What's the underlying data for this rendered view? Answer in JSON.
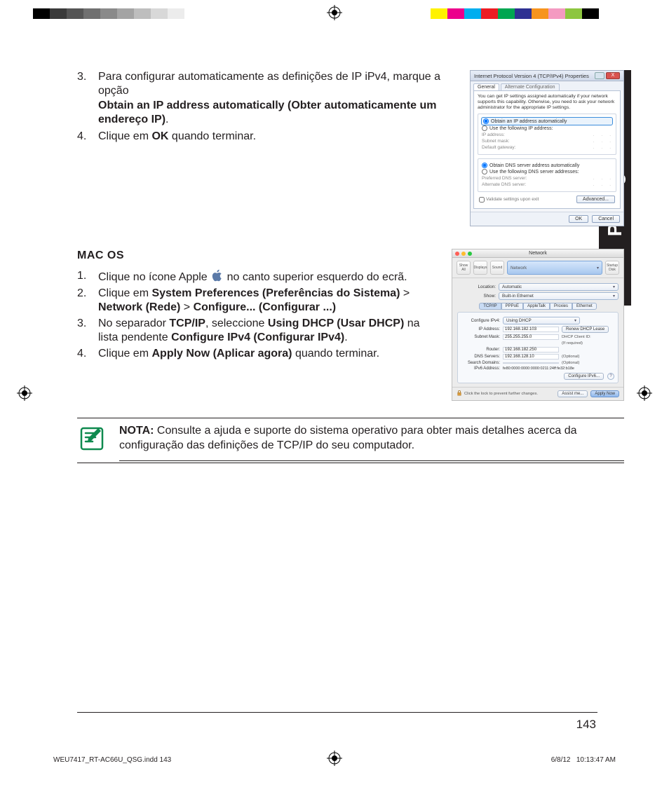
{
  "language_tab": "Português",
  "page_number": "143",
  "slug_left": "WEU7417_RT-AC66U_QSG.indd   143",
  "slug_date": "6/8/12",
  "slug_time": "10:13:47 AM",
  "colorbar_left": [
    "#000000",
    "#3a3a3a",
    "#555555",
    "#707070",
    "#8a8a8a",
    "#a4a4a4",
    "#bebebe",
    "#d8d8d8",
    "#ececec",
    "#ffffff",
    "#ffffff",
    "#ffffff",
    "#ffffff"
  ],
  "colorbar_right": [
    "#fff200",
    "#ec008c",
    "#00aeef",
    "#ed1c24",
    "#00a651",
    "#2e3192",
    "#f7941e",
    "#f49ac1",
    "#8dc63f",
    "#000000",
    "#ffffff",
    "#ffffff"
  ],
  "step3_num": "3.",
  "step3_a": "Para configurar automaticamente as definições de IP iPv4, marque a opção",
  "step3_b": "Obtain an IP address automatically (Obter automaticamente um endereço IP)",
  "step3_c": ".",
  "step4_num": "4.",
  "step4_a": "Clique em ",
  "step4_b": "OK",
  "step4_c": " quando terminar.",
  "macos_heading": "MAC OS",
  "m1_num": "1.",
  "m1_a": "Clique no ícone Apple ",
  "m1_b": " no canto superior esquerdo do ecrã.",
  "m2_num": "2.",
  "m2_a": "Clique em ",
  "m2_b": "System Preferences (Preferências do Sistema)",
  "m2_gt1": " > ",
  "m2_c": "Network (Rede)",
  "m2_gt2": " > ",
  "m2_d": "Configure... (Configurar ...)",
  "m3_num": "3.",
  "m3_a": "No separador ",
  "m3_b": "TCP/IP",
  "m3_c": ", seleccione ",
  "m3_d": "Using DHCP (Usar DHCP)",
  "m3_e": " na lista pendente ",
  "m3_f": "Configure IPv4 (Configurar IPv4)",
  "m3_g": ".",
  "m4_num": "4.",
  "m4_a": "Clique em ",
  "m4_b": "Apply Now (Aplicar agora)",
  "m4_c": " quando terminar.",
  "note_label": "NOTA:",
  "note_body": "   Consulte a ajuda e suporte do sistema operativo para obter mais detalhes acerca da configuração das definições de TCP/IP do seu computador.",
  "ipv4": {
    "title": "Internet Protocol Version 4 (TCP/IPv4) Properties",
    "tab_general": "General",
    "tab_alt": "Alternate Configuration",
    "hint": "You can get IP settings assigned automatically if your network supports this capability. Otherwise, you need to ask your network administrator for the appropriate IP settings.",
    "opt_auto_ip": "Obtain an IP address automatically",
    "opt_use_ip": "Use the following IP address:",
    "lbl_ip": "IP address:",
    "lbl_mask": "Subnet mask:",
    "lbl_gw": "Default gateway:",
    "opt_auto_dns": "Obtain DNS server address automatically",
    "opt_use_dns": "Use the following DNS server addresses:",
    "lbl_pdns": "Preferred DNS server:",
    "lbl_adns": "Alternate DNS server:",
    "chk_validate": "Validate settings upon exit",
    "btn_adv": "Advanced...",
    "btn_ok": "OK",
    "btn_cancel": "Cancel",
    "close_x": "X"
  },
  "mac": {
    "title": "Network",
    "tb_showall": "Show All",
    "tb_displays": "Displays",
    "tb_sound": "Sound",
    "tb_network": "Network",
    "tb_startup": "Startup Disk",
    "location_lbl": "Location:",
    "location_val": "Automatic",
    "show_lbl": "Show:",
    "show_val": "Built-in Ethernet",
    "tabs": [
      "TCP/IP",
      "PPPoE",
      "AppleTalk",
      "Proxies",
      "Ethernet"
    ],
    "cfg4_lbl": "Configure IPv4:",
    "cfg4_val": "Using DHCP",
    "ip_lbl": "IP Address:",
    "ip_val": "192.168.182.103",
    "renew": "Renew DHCP Lease",
    "mask_lbl": "Subnet Mask:",
    "mask_val": "255.255.255.0",
    "client_lbl": "DHCP Client ID:",
    "client_hint": "(If required)",
    "router_lbl": "Router:",
    "router_val": "192.168.182.250",
    "dns_lbl": "DNS Servers:",
    "dns_val": "192.168.128.10",
    "optional": "(Optional)",
    "search_lbl": "Search Domains:",
    "ipv6_lbl": "IPv6 Address:",
    "ipv6_val": "fe80:0000:0000:0000:0211:24ff:fe32:b18e",
    "cfg6_btn": "Configure IPv6...",
    "lock_txt": "Click the lock to prevent further changes.",
    "assist": "Assist me...",
    "apply": "Apply Now",
    "traffic_colors": [
      "#ff5f57",
      "#febc2e",
      "#28c840"
    ]
  }
}
